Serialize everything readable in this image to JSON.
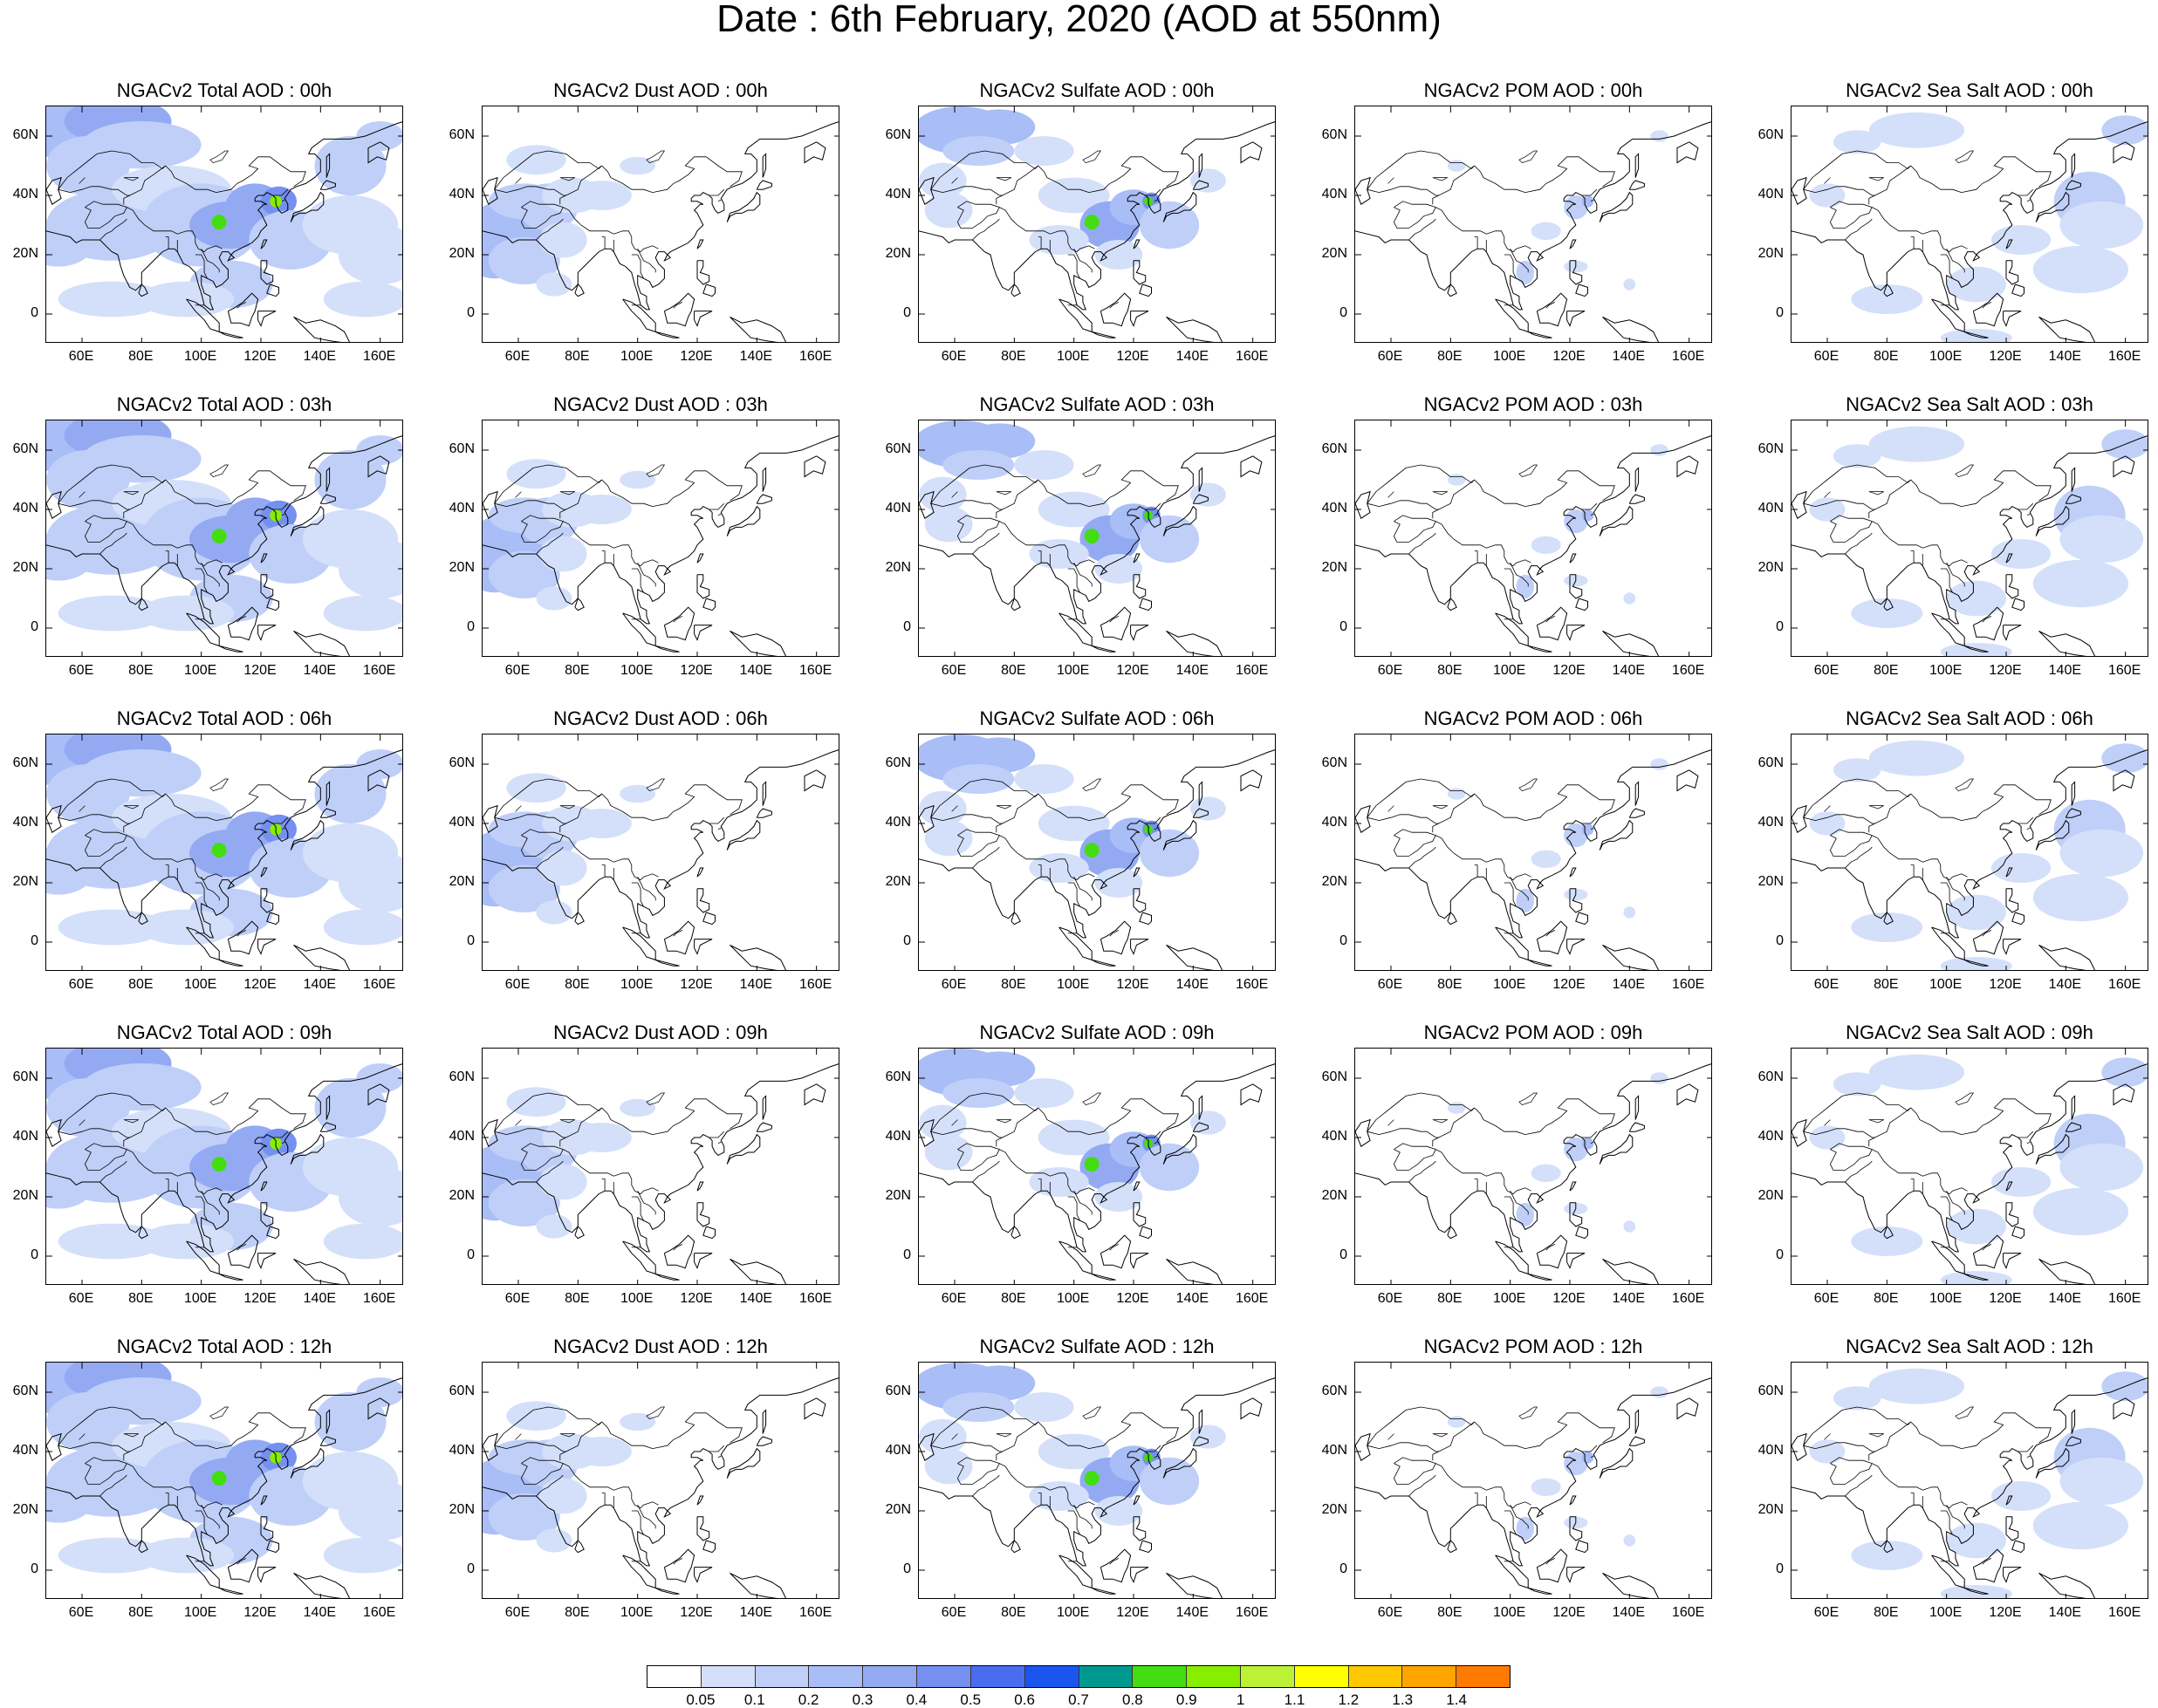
{
  "title": "Date : 6th February, 2020 (AOD at 550nm)",
  "map_axes": {
    "lat_labels": [
      "60N",
      "40N",
      "20N",
      "0"
    ],
    "lon_labels": [
      "60E",
      "80E",
      "100E",
      "120E",
      "140E",
      "160E"
    ]
  },
  "panels": [
    [
      {
        "title": "NGACv2 Total AOD : 00h",
        "variable": "Total"
      },
      {
        "title": "NGACv2 Dust AOD : 00h",
        "variable": "Dust"
      },
      {
        "title": "NGACv2 Sulfate AOD : 00h",
        "variable": "Sulfate"
      },
      {
        "title": "NGACv2 POM AOD : 00h",
        "variable": "POM"
      },
      {
        "title": "NGACv2 Sea Salt AOD : 00h",
        "variable": "Sea Salt"
      }
    ],
    [
      {
        "title": "NGACv2 Total AOD : 03h",
        "variable": "Total"
      },
      {
        "title": "NGACv2 Dust AOD : 03h",
        "variable": "Dust"
      },
      {
        "title": "NGACv2 Sulfate AOD : 03h",
        "variable": "Sulfate"
      },
      {
        "title": "NGACv2 POM AOD : 03h",
        "variable": "POM"
      },
      {
        "title": "NGACv2 Sea Salt AOD : 03h",
        "variable": "Sea Salt"
      }
    ],
    [
      {
        "title": "NGACv2 Total AOD : 06h",
        "variable": "Total"
      },
      {
        "title": "NGACv2 Dust AOD : 06h",
        "variable": "Dust"
      },
      {
        "title": "NGACv2 Sulfate AOD : 06h",
        "variable": "Sulfate"
      },
      {
        "title": "NGACv2 POM AOD : 06h",
        "variable": "POM"
      },
      {
        "title": "NGACv2 Sea Salt AOD : 06h",
        "variable": "Sea Salt"
      }
    ],
    [
      {
        "title": "NGACv2 Total AOD : 09h",
        "variable": "Total"
      },
      {
        "title": "NGACv2 Dust AOD : 09h",
        "variable": "Dust"
      },
      {
        "title": "NGACv2 Sulfate AOD : 09h",
        "variable": "Sulfate"
      },
      {
        "title": "NGACv2 POM AOD : 09h",
        "variable": "POM"
      },
      {
        "title": "NGACv2 Sea Salt  AOD : 09h",
        "variable": "Sea Salt"
      }
    ],
    [
      {
        "title": "NGACv2 Total AOD  : 12h",
        "variable": "Total"
      },
      {
        "title": "NGACv2 Dust AOD : 12h",
        "variable": "Dust"
      },
      {
        "title": "NGACv2 Sulfate AOD : 12h",
        "variable": "Sulfate"
      },
      {
        "title": "NGACv2 POM  AOD : 12h",
        "variable": "POM"
      },
      {
        "title": "NGACv2 Sea Salt  AOD : 12h",
        "variable": "Sea Salt"
      }
    ]
  ],
  "colorbar": {
    "labels": [
      "0.05",
      "0.1",
      "0.2",
      "0.3",
      "0.4",
      "0.5",
      "0.6",
      "0.7",
      "0.8",
      "0.9",
      "1",
      "1.1",
      "1.2",
      "1.3",
      "1.4"
    ],
    "colors": [
      "#ffffff",
      "#d4e0fa",
      "#bfcff8",
      "#a9bdf6",
      "#93aaf3",
      "#7590f0",
      "#4a6cf0",
      "#1a55ee",
      "#00998f",
      "#44dd11",
      "#88ee00",
      "#bbf235",
      "#ffff00",
      "#ffc800",
      "#ffa500",
      "#ff7a00",
      "#ff2000"
    ]
  }
}
